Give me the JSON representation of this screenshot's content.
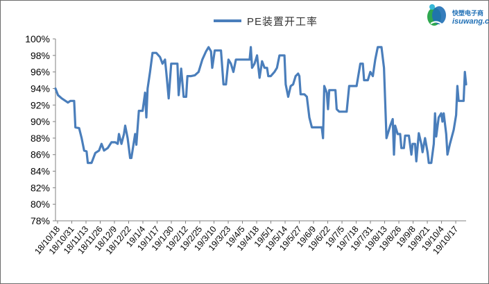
{
  "chart_data": {
    "type": "line",
    "title": "",
    "xlabel": "",
    "ylabel": "",
    "ylim": [
      78,
      100
    ],
    "ytick_step": 2,
    "ytick_suffix": "%",
    "grid": false,
    "legend": "top-center",
    "x_tick_labels": [
      "18/10/18",
      "18/10/31",
      "18/11/13",
      "18/11/26",
      "18/12/9",
      "18/12/22",
      "19/1/4",
      "19/1/17",
      "19/1/30",
      "19/2/12",
      "19/2/25",
      "19/3/10",
      "19/3/23",
      "19/4/5",
      "19/4/18",
      "19/5/1",
      "19/5/14",
      "19/5/27",
      "19/6/9",
      "19/6/22",
      "19/7/5",
      "19/7/18",
      "19/7/31",
      "19/8/13",
      "19/8/26",
      "19/9/8",
      "19/9/21",
      "19/10/4",
      "19/10/17"
    ],
    "series": [
      {
        "name": "PE装置开工率",
        "color": "#4a7ebb",
        "x": [
          0,
          0.3,
          0.6,
          0.9,
          1.2,
          1.5,
          1.8,
          2.1,
          2.4,
          2.7,
          3.0,
          3.3,
          3.6,
          3.9,
          4.2,
          4.5,
          4.8,
          5.1,
          5.4,
          5.7,
          6.0,
          6.3,
          6.6,
          6.9,
          7.2,
          7.5,
          7.8,
          8.1,
          8.4,
          8.7,
          9.0,
          9.3,
          9.6,
          9.9,
          10.2,
          10.5,
          10.8,
          11.1,
          11.4,
          11.7,
          12.0,
          12.3,
          12.6,
          12.9,
          13.2,
          13.5,
          13.8,
          14.1,
          14.4,
          14.7,
          15.0,
          15.3,
          15.6,
          15.9,
          16.2,
          16.5,
          16.8,
          17.1,
          17.4,
          17.7,
          18.0,
          18.3,
          18.6,
          18.9,
          19.2,
          19.5,
          19.8,
          20.1,
          20.4,
          20.7,
          21.0,
          21.3,
          21.6,
          21.9,
          22.2,
          22.5,
          22.8,
          23.1,
          23.4,
          23.7,
          24.0,
          24.3,
          24.6,
          24.9,
          25.2,
          25.5,
          25.8,
          26.1,
          26.4,
          26.7,
          27.0,
          27.3,
          27.6,
          27.9,
          28.2,
          28.4
        ],
        "values": [
          94.0,
          93.5,
          92.8,
          92.5,
          92.5,
          92.5,
          89.2,
          88.0,
          86.5,
          85.0,
          85.0,
          86.0,
          87.2,
          86.5,
          86.8,
          87.5,
          87.8,
          88.5,
          89.3,
          87.5,
          85.6,
          88.0,
          87.5,
          91.3,
          93.5,
          97.0,
          98.3,
          98.0,
          97.5,
          96.0,
          94.5,
          97.0,
          96.8,
          93.5,
          95.5,
          95.0,
          95.4,
          96.0,
          97.5,
          98.8,
          97.5,
          98.5,
          98.6,
          95.5,
          96.5,
          97.0,
          97.5,
          97.5,
          97.5,
          98.0,
          96.5,
          96.0,
          97.0,
          96.0,
          96.5,
          97.3,
          97.8,
          94.0,
          92.8,
          94.5,
          95.0,
          95.5,
          94.0,
          93.5,
          92.5,
          89.5,
          89.3,
          89.3,
          89.3,
          93.0,
          93.8,
          91.5,
          91.5,
          94.3,
          94.3,
          96.0,
          96.8,
          95.5,
          96.5,
          99.0,
          91.0,
          89.0,
          90.5,
          88.5,
          88.0,
          86.8,
          88.4,
          87.3,
          86.5,
          86.8,
          87.5,
          86.5,
          85.8,
          91.0,
          91.5,
          89.5
        ],
        "detail_points": [
          [
            0,
            94.0
          ],
          [
            0.2,
            93.2
          ],
          [
            0.5,
            92.8
          ],
          [
            0.8,
            92.5
          ],
          [
            1.0,
            92.3
          ],
          [
            1.2,
            92.5
          ],
          [
            1.5,
            92.5
          ],
          [
            1.6,
            89.3
          ],
          [
            1.9,
            89.2
          ],
          [
            2.1,
            88.0
          ],
          [
            2.3,
            86.5
          ],
          [
            2.5,
            86.4
          ],
          [
            2.6,
            85.0
          ],
          [
            2.9,
            85.0
          ],
          [
            3.2,
            86.2
          ],
          [
            3.5,
            86.5
          ],
          [
            3.7,
            87.3
          ],
          [
            3.9,
            86.5
          ],
          [
            4.2,
            86.8
          ],
          [
            4.5,
            87.5
          ],
          [
            4.8,
            87.5
          ],
          [
            5.0,
            87.3
          ],
          [
            5.1,
            88.5
          ],
          [
            5.3,
            87.3
          ],
          [
            5.5,
            88.5
          ],
          [
            5.6,
            89.5
          ],
          [
            5.8,
            88.0
          ],
          [
            6.0,
            85.6
          ],
          [
            6.1,
            85.6
          ],
          [
            6.4,
            88.5
          ],
          [
            6.5,
            87.2
          ],
          [
            6.7,
            91.3
          ],
          [
            7.0,
            91.3
          ],
          [
            7.2,
            93.5
          ],
          [
            7.3,
            90.5
          ],
          [
            7.4,
            94.0
          ],
          [
            7.6,
            96.0
          ],
          [
            7.8,
            98.3
          ],
          [
            8.1,
            98.3
          ],
          [
            8.4,
            97.8
          ],
          [
            8.6,
            97.0
          ],
          [
            8.8,
            97.5
          ],
          [
            8.9,
            96.0
          ],
          [
            9.1,
            92.8
          ],
          [
            9.3,
            97.0
          ],
          [
            9.6,
            97.0
          ],
          [
            9.8,
            97.0
          ],
          [
            9.9,
            93.2
          ],
          [
            10.1,
            96.4
          ],
          [
            10.3,
            93.0
          ],
          [
            10.5,
            93.0
          ],
          [
            10.6,
            95.5
          ],
          [
            10.9,
            95.5
          ],
          [
            11.2,
            95.6
          ],
          [
            11.5,
            96.0
          ],
          [
            11.8,
            97.5
          ],
          [
            12.1,
            98.5
          ],
          [
            12.3,
            99.0
          ],
          [
            12.5,
            98.5
          ],
          [
            12.6,
            96.5
          ],
          [
            12.8,
            98.6
          ],
          [
            13.1,
            98.6
          ],
          [
            13.3,
            98.6
          ],
          [
            13.5,
            94.5
          ],
          [
            13.7,
            94.5
          ],
          [
            13.9,
            97.5
          ],
          [
            14.1,
            97.0
          ],
          [
            14.3,
            96.0
          ],
          [
            14.5,
            97.5
          ],
          [
            14.8,
            97.5
          ],
          [
            15.1,
            97.5
          ],
          [
            15.4,
            97.5
          ],
          [
            15.6,
            97.5
          ],
          [
            15.7,
            99.0
          ],
          [
            15.8,
            96.5
          ],
          [
            16.0,
            97.0
          ],
          [
            16.2,
            98.0
          ],
          [
            16.4,
            95.3
          ],
          [
            16.6,
            97.3
          ],
          [
            16.8,
            96.5
          ],
          [
            17.0,
            96.5
          ],
          [
            17.1,
            95.5
          ],
          [
            17.3,
            95.5
          ],
          [
            17.6,
            96.0
          ],
          [
            17.8,
            96.5
          ],
          [
            18.0,
            98.0
          ],
          [
            18.2,
            98.0
          ],
          [
            18.4,
            98.0
          ],
          [
            18.5,
            94.5
          ],
          [
            18.7,
            93.0
          ],
          [
            18.9,
            94.3
          ],
          [
            19.1,
            94.5
          ],
          [
            19.3,
            95.5
          ],
          [
            19.5,
            95.8
          ],
          [
            19.6,
            95.5
          ],
          [
            19.7,
            93.3
          ],
          [
            20.0,
            93.3
          ],
          [
            20.2,
            93.0
          ],
          [
            20.4,
            90.5
          ],
          [
            20.6,
            89.3
          ],
          [
            20.9,
            89.3
          ],
          [
            21.2,
            89.3
          ],
          [
            21.4,
            89.3
          ],
          [
            21.5,
            88.0
          ],
          [
            21.6,
            94.3
          ],
          [
            21.8,
            93.5
          ],
          [
            21.9,
            91.5
          ],
          [
            22.0,
            93.8
          ],
          [
            22.3,
            93.8
          ],
          [
            22.5,
            93.8
          ],
          [
            22.6,
            91.5
          ],
          [
            22.8,
            91.2
          ],
          [
            23.1,
            91.2
          ],
          [
            23.4,
            91.2
          ],
          [
            23.6,
            94.3
          ],
          [
            23.9,
            94.3
          ],
          [
            24.2,
            94.3
          ],
          [
            24.5,
            97.0
          ],
          [
            24.7,
            97.0
          ],
          [
            24.8,
            95.0
          ],
          [
            25.1,
            95.0
          ],
          [
            25.3,
            96.0
          ],
          [
            25.5,
            95.5
          ],
          [
            25.7,
            97.5
          ],
          [
            25.9,
            99.0
          ],
          [
            26.2,
            99.0
          ],
          [
            26.4,
            96.5
          ],
          [
            26.6,
            88.0
          ],
          [
            26.8,
            89.0
          ],
          [
            26.9,
            89.5
          ],
          [
            27.1,
            90.3
          ],
          [
            27.2,
            86.0
          ],
          [
            27.3,
            89.5
          ],
          [
            27.5,
            88.5
          ],
          [
            27.7,
            88.5
          ],
          [
            27.8,
            86.8
          ],
          [
            28.0,
            86.8
          ],
          [
            28.1,
            88.3
          ],
          [
            28.3,
            88.3
          ],
          [
            28.4,
            88.3
          ],
          [
            28.6,
            86.0
          ],
          [
            28.7,
            87.3
          ],
          [
            28.9,
            87.3
          ],
          [
            29.0,
            85.2
          ],
          [
            29.2,
            88.6
          ],
          [
            29.4,
            87.3
          ],
          [
            29.5,
            86.3
          ],
          [
            29.7,
            88.0
          ],
          [
            29.9,
            86.3
          ],
          [
            30.0,
            85.0
          ],
          [
            30.2,
            85.0
          ],
          [
            30.4,
            87.3
          ],
          [
            30.5,
            91.0
          ],
          [
            30.6,
            88.2
          ],
          [
            30.8,
            90.5
          ],
          [
            31.0,
            91.0
          ],
          [
            31.1,
            90.0
          ],
          [
            31.2,
            91.0
          ],
          [
            31.4,
            88.5
          ],
          [
            31.5,
            86.0
          ],
          [
            31.7,
            87.3
          ],
          [
            32.0,
            89.0
          ],
          [
            32.2,
            90.8
          ],
          [
            32.3,
            94.3
          ],
          [
            32.4,
            92.5
          ],
          [
            32.6,
            92.5
          ],
          [
            32.8,
            92.5
          ],
          [
            32.9,
            96.0
          ],
          [
            33.0,
            94.5
          ]
        ]
      }
    ]
  },
  "branding": {
    "logo_cn": "快塑电子商",
    "logo_en": "isuwang.c"
  }
}
